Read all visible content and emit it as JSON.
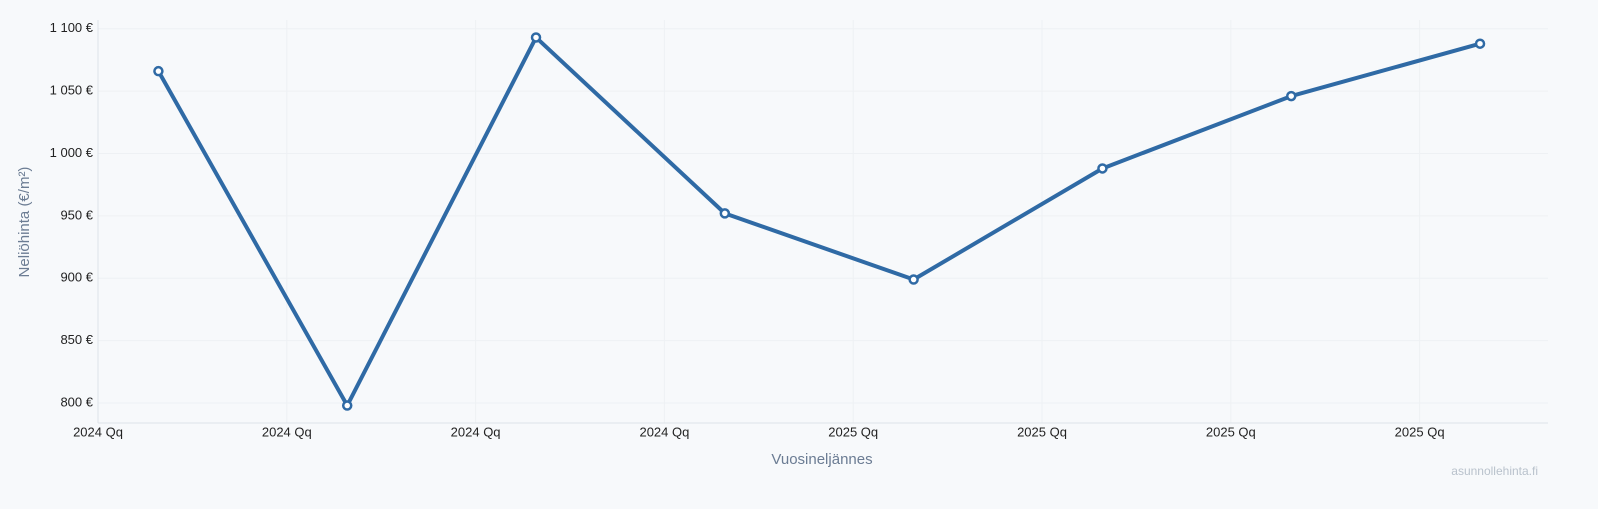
{
  "chart_data": {
    "type": "line",
    "x_label": "Vuosineljännes",
    "y_label": "Neliöhinta (€/m²)",
    "watermark": "asunnollehinta.fi",
    "x": [
      2024.08,
      2024.33,
      2024.58,
      2024.83,
      2025.08,
      2025.33,
      2025.58,
      2025.83
    ],
    "series": [
      {
        "color": "#2f6aa5",
        "values": [
          1066,
          798,
          1093,
          952,
          899,
          988,
          1046,
          1088
        ]
      }
    ],
    "xlim": [
      2024,
      2025.92
    ],
    "xticks": [
      {
        "value": 2024,
        "label": "2024 Qq"
      },
      {
        "value": 2024.25,
        "label": "2024 Qq"
      },
      {
        "value": 2024.5,
        "label": "2024 Qq"
      },
      {
        "value": 2024.75,
        "label": "2024 Qq"
      },
      {
        "value": 2025,
        "label": "2025 Qq"
      },
      {
        "value": 2025.25,
        "label": "2025 Qq"
      },
      {
        "value": 2025.5,
        "label": "2025 Qq"
      },
      {
        "value": 2025.75,
        "label": "2025 Qq"
      }
    ],
    "ylim": [
      784,
      1107
    ],
    "yticks": [
      {
        "value": 800,
        "label": "800 €"
      },
      {
        "value": 850,
        "label": "850 €"
      },
      {
        "value": 900,
        "label": "900 €"
      },
      {
        "value": 950,
        "label": "950 €"
      },
      {
        "value": 1000,
        "label": "1 000 €"
      },
      {
        "value": 1050,
        "label": "1 050 €"
      },
      {
        "value": 1100,
        "label": "1 100 €"
      }
    ],
    "grid": true
  }
}
